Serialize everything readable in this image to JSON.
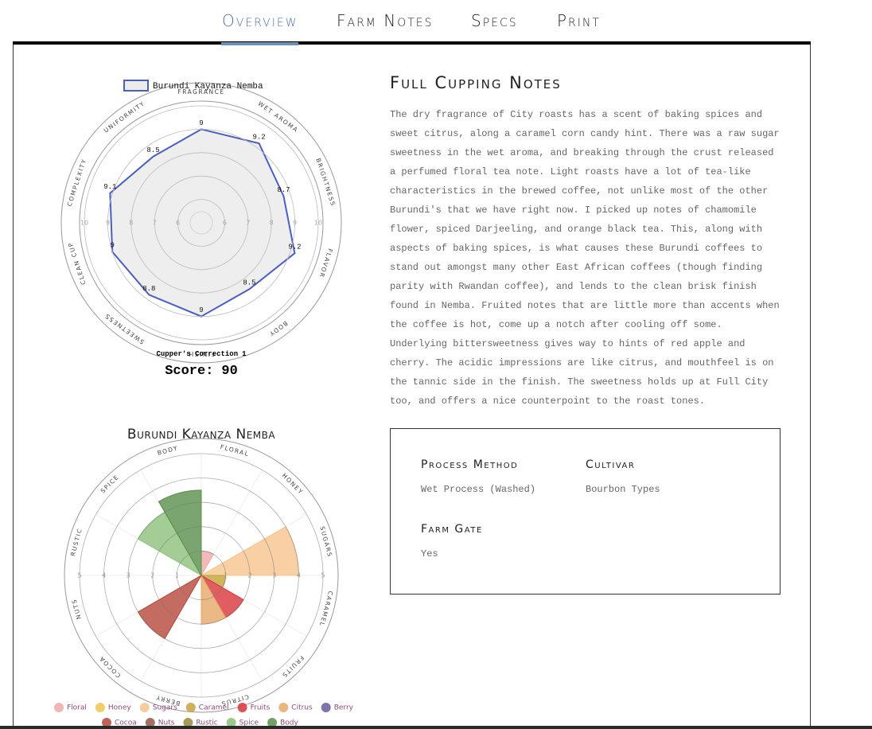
{
  "nav": {
    "items": [
      "Overview",
      "Farm Notes",
      "Specs",
      "Print"
    ],
    "active": 0
  },
  "chart_data": [
    {
      "type": "radar",
      "categories": [
        "FRAGRANCE",
        "WET AROMA",
        "BRIGHTNESS",
        "FLAVOR",
        "BODY",
        "FINISH",
        "SWEETNESS",
        "CLEAN CUP",
        "COMPLEXITY",
        "UNIFORMITY"
      ],
      "series": [
        {
          "name": "Burundi Kayanza Nemba",
          "color": "#4a5fc1",
          "fill": "#ebebeb",
          "values": [
            9,
            9.2,
            8.7,
            9.2,
            8.5,
            9,
            8.8,
            9,
            9.1,
            8.5
          ]
        }
      ],
      "rlim": [
        5,
        10
      ],
      "rticks": [
        6,
        7,
        8,
        9,
        10
      ],
      "correction_label": "Cupper's Correction",
      "correction": 1,
      "score_label": "Score:",
      "score": 90
    },
    {
      "type": "polar-area",
      "title": "Burundi Kayanza Nemba",
      "categories": [
        "Floral",
        "Honey",
        "Sugars",
        "Caramel",
        "Fruits",
        "Citrus",
        "Berry",
        "Cocoa",
        "Nuts",
        "Rustic",
        "Spice",
        "Body"
      ],
      "axis_labels": [
        "FLORAL",
        "HONEY",
        "SUGARS",
        "CARAMEL",
        "FRUITS",
        "CITRUS",
        "BERRY",
        "COCOA",
        "NUTS",
        "RUSTIC",
        "SPICE",
        "BODY"
      ],
      "values": [
        1,
        0,
        4,
        1,
        2,
        2,
        0,
        3,
        0,
        0,
        3,
        3.5
      ],
      "colors": [
        "#efa9a9",
        "#edc74f",
        "#f6c48c",
        "#c4a23a",
        "#d8343a",
        "#e6a868",
        "#6a5a9e",
        "#b5473a",
        "#94574a",
        "#968a3c",
        "#8dc07a",
        "#5a8f4a"
      ],
      "rlim": [
        0,
        5
      ],
      "rticks": [
        1,
        2,
        3,
        4,
        5
      ]
    }
  ],
  "notes": {
    "title": "Full Cupping Notes",
    "text": "The dry fragrance of City roasts has a scent of baking spices and sweet citrus, along a caramel corn candy hint. There was a raw sugar sweetness in the wet aroma, and breaking through the crust released a perfumed floral tea note. Light roasts have a lot of tea-like characteristics in the brewed coffee, not unlike most of the other Burundi's that we have right now. I picked up notes of chamomile flower, spiced Darjeeling, and orange black tea. This, along with aspects of baking spices, is what causes these Burundi coffees to stand out amongst many other East African coffees (though finding parity with Rwandan coffee), and lends to the clean brisk finish found in Nemba. Fruited notes that are little more than accents when the coffee is hot, come up a notch after cooling off some. Underlying bittersweetness gives way to hints of red apple and cherry. The acidic impressions are like citrus, and mouthfeel is on the tannic side in the finish. The sweetness holds up at Full City too, and offers a nice counterpoint to the roast tones."
  },
  "specs": [
    {
      "label": "Process Method",
      "value": "Wet Process (Washed)"
    },
    {
      "label": "Cultivar",
      "value": "Bourbon Types"
    },
    {
      "label": "Farm Gate",
      "value": "Yes"
    }
  ]
}
